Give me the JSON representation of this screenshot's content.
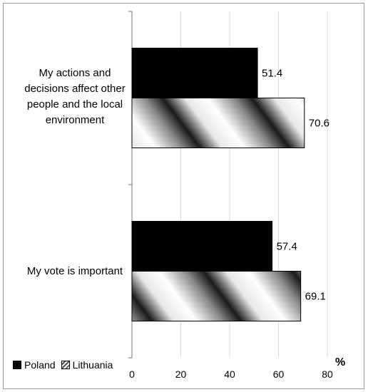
{
  "chart_data": {
    "type": "bar",
    "orientation": "horizontal",
    "categories": [
      "My actions and decisions affect other people and the local environment",
      "My vote is important"
    ],
    "category_lines": [
      [
        "My actions and",
        "decisions affect other",
        "people and the local",
        "environment"
      ],
      [
        "My vote is important"
      ]
    ],
    "series": [
      {
        "name": "Poland",
        "values": [
          51.4,
          57.4
        ],
        "color": "#000000"
      },
      {
        "name": "Lithuania",
        "values": [
          70.6,
          69.1
        ],
        "color": "#b0b0b0"
      }
    ],
    "data_labels": {
      "Poland": [
        "51.4",
        "57.4"
      ],
      "Lithuania": [
        "70.6",
        "69.1"
      ]
    },
    "xticks": [
      "0",
      "20",
      "40",
      "60",
      "80"
    ],
    "xlim": [
      0,
      80
    ],
    "unit_label": "%",
    "grid": true,
    "legend_position": "bottom-left"
  }
}
